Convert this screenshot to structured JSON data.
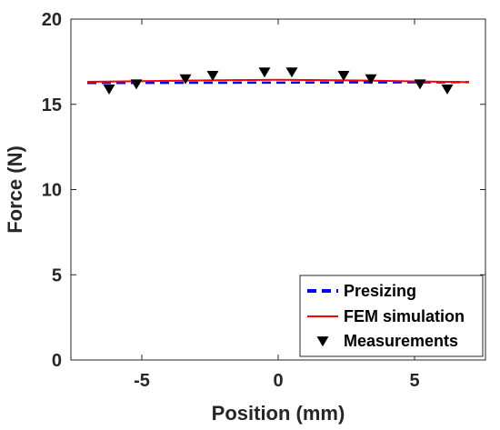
{
  "chart_data": {
    "type": "line",
    "title": "",
    "xlabel": "Position (mm)",
    "ylabel": "Force (N)",
    "xlim": [
      -7.6,
      7.6
    ],
    "ylim": [
      0,
      20
    ],
    "xticks": [
      -5,
      0,
      5
    ],
    "yticks": [
      0,
      5,
      10,
      15,
      20
    ],
    "grid": false,
    "legend_position": "bottom-right",
    "series": [
      {
        "name": "Presizing",
        "kind": "line",
        "style": "dashed",
        "color": "#0000ff",
        "x": [
          -7,
          7
        ],
        "y": [
          16.25,
          16.3
        ]
      },
      {
        "name": "FEM simulation",
        "kind": "line",
        "style": "solid",
        "color": "#ff0000",
        "x": [
          -7,
          -5,
          -3,
          -1,
          0,
          1,
          3,
          5,
          7
        ],
        "y": [
          16.32,
          16.36,
          16.4,
          16.43,
          16.44,
          16.43,
          16.4,
          16.35,
          16.3
        ]
      },
      {
        "name": "Measurements",
        "kind": "scatter",
        "marker": "triangle-down",
        "color": "#000000",
        "x": [
          -6.2,
          -5.2,
          -3.4,
          -2.4,
          -0.5,
          0.5,
          2.4,
          3.4,
          5.2,
          6.2
        ],
        "y": [
          15.9,
          16.2,
          16.5,
          16.7,
          16.9,
          16.9,
          16.7,
          16.5,
          16.2,
          15.9
        ]
      }
    ]
  }
}
